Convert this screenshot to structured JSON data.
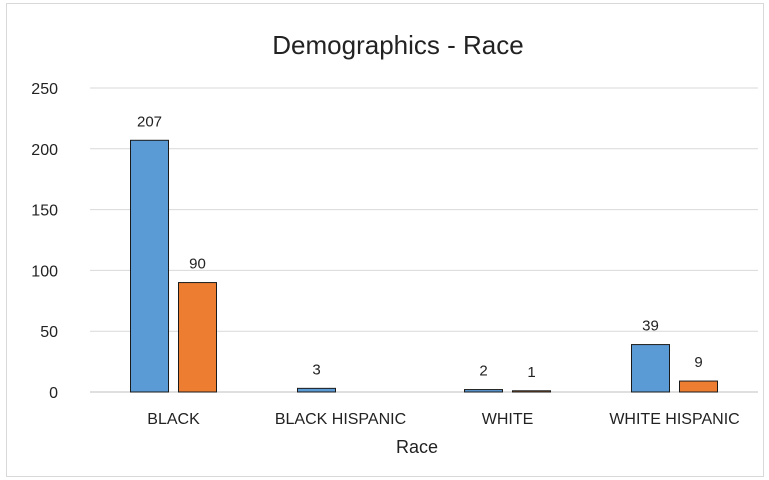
{
  "chart_data": {
    "type": "bar",
    "title": "Demographics - Race",
    "xlabel": "Race",
    "ylabel": "",
    "categories": [
      "BLACK",
      "BLACK HISPANIC",
      "WHITE",
      "WHITE HISPANIC"
    ],
    "series": [
      {
        "color": "#5b9bd5",
        "values": [
          207,
          3,
          2,
          39
        ]
      },
      {
        "color": "#ed7d31",
        "values": [
          90,
          0,
          1,
          9
        ]
      }
    ],
    "data_labels": [
      [
        "207",
        "3",
        "2",
        "39"
      ],
      [
        "90",
        "",
        "1",
        "9"
      ]
    ],
    "ylim": [
      0,
      250
    ],
    "yticks": [
      "0",
      "50",
      "100",
      "150",
      "200",
      "250"
    ],
    "grid": true,
    "legend": "none"
  }
}
